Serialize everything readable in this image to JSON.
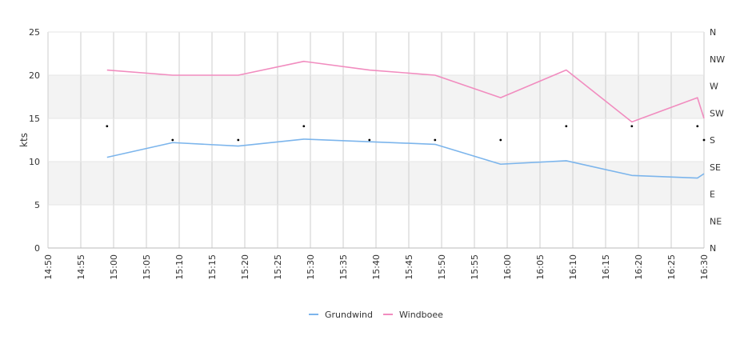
{
  "chart_data": {
    "type": "line",
    "ylabel": "kts",
    "ylim": [
      0,
      25
    ],
    "yticks": [
      "0",
      "5",
      "10",
      "15",
      "20",
      "25"
    ],
    "xticks": [
      "14:50",
      "14:55",
      "15:00",
      "15:05",
      "15:10",
      "15:15",
      "15:20",
      "15:25",
      "15:30",
      "15:35",
      "15:40",
      "15:45",
      "15:50",
      "15:55",
      "16:00",
      "16:05",
      "16:10",
      "16:15",
      "16:20",
      "16:25",
      "16:30"
    ],
    "x_range_minutes": [
      0,
      100
    ],
    "right_axis_labels": [
      "N",
      "NW",
      "W",
      "SW",
      "S",
      "SE",
      "E",
      "NE",
      "N"
    ],
    "right_axis_range": [
      360,
      0
    ],
    "band_ranges": [
      [
        5,
        10
      ],
      [
        15,
        20
      ]
    ],
    "colors": {
      "band": "#f3f3f3",
      "grid": "#cccccc",
      "series_1": "#7cb5ec",
      "series_2": "#f18cbf",
      "direction": "#000000"
    },
    "x": [
      "14:59",
      "15:09",
      "15:19",
      "15:29",
      "15:39",
      "15:49",
      "15:59",
      "16:09",
      "16:19",
      "16:29",
      "16:30"
    ],
    "series": [
      {
        "name": "Grundwind",
        "values": [
          10.5,
          12.2,
          11.8,
          12.6,
          12.3,
          12.0,
          9.7,
          10.1,
          8.4,
          8.1,
          8.6
        ]
      },
      {
        "name": "Windboee",
        "values": [
          20.6,
          20.0,
          20.0,
          21.6,
          20.6,
          20.0,
          17.4,
          20.6,
          14.6,
          17.4,
          15.0
        ]
      }
    ],
    "direction_points": [
      {
        "x": "14:59",
        "value": "SSW"
      },
      {
        "x": "15:09",
        "value": "S"
      },
      {
        "x": "15:19",
        "value": "S"
      },
      {
        "x": "15:29",
        "value": "SSW"
      },
      {
        "x": "15:39",
        "value": "S"
      },
      {
        "x": "15:49",
        "value": "S"
      },
      {
        "x": "15:59",
        "value": "S"
      },
      {
        "x": "16:09",
        "value": "SSW"
      },
      {
        "x": "16:19",
        "value": "SSW"
      },
      {
        "x": "16:29",
        "value": "SSW"
      },
      {
        "x": "16:30",
        "value": "S"
      }
    ],
    "direction_degrees": {
      "N": 360,
      "NW": 315,
      "W": 270,
      "SSW": 203,
      "SW": 225,
      "S": 180,
      "SE": 135,
      "E": 90,
      "NE": 45
    },
    "legend": [
      "Grundwind",
      "Windboee"
    ],
    "legend_position": "bottom-center",
    "grid": true
  }
}
